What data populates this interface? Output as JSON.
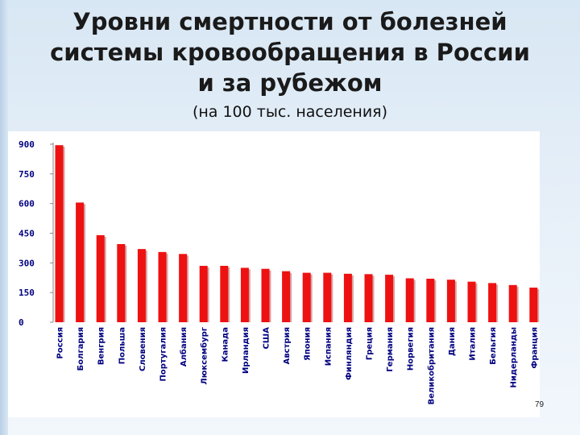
{
  "title_lines": [
    "Уровни смертности от болезней",
    "системы кровообращения в России",
    "и за рубежом"
  ],
  "subtitle": "(на 100 тыс. населения)",
  "page_number": "79",
  "colors": {
    "bar": "#ee1111",
    "bar_shadow": "#8b0000",
    "tick_label": "#000080",
    "panel": "#ffffff"
  },
  "chart_data": {
    "type": "bar",
    "categories": [
      "Россия",
      "Болгария",
      "Венгрия",
      "Польша",
      "Словения",
      "Португалия",
      "Албания",
      "Люксембург",
      "Канада",
      "Ирландия",
      "США",
      "Австрия",
      "Япония",
      "Испания",
      "Финляндия",
      "Греция",
      "Германия",
      "Норвегия",
      "Великобритания",
      "Дания",
      "Италия",
      "Бельгия",
      "Нидерланды",
      "Франция"
    ],
    "values": [
      895,
      605,
      440,
      395,
      370,
      355,
      345,
      285,
      285,
      275,
      270,
      258,
      250,
      250,
      245,
      243,
      240,
      222,
      220,
      215,
      205,
      198,
      188,
      175
    ],
    "y_ticks": [
      "0",
      "150",
      "300",
      "450",
      "600",
      "750",
      "900"
    ],
    "ylim": [
      0,
      900
    ],
    "grid": false,
    "legend": "none",
    "title": "",
    "xlabel": "",
    "ylabel": ""
  }
}
